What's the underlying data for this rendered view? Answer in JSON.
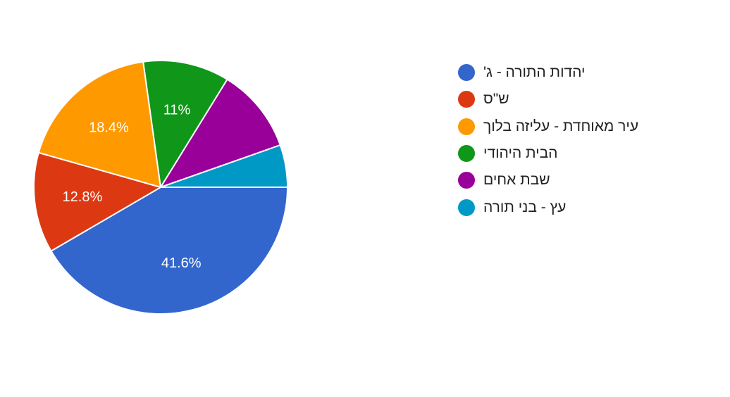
{
  "chart_data": {
    "type": "pie",
    "title": "",
    "legend_position": "right",
    "slices": [
      {
        "label": "יהדות התורה - ג'",
        "value": 41.6,
        "value_label": "41.6%",
        "color": "#3366cc"
      },
      {
        "label": "ש\"ס",
        "value": 12.8,
        "value_label": "12.8%",
        "color": "#dc3912"
      },
      {
        "label": "עיר מאוחדת - עליזה בלוך",
        "value": 18.4,
        "value_label": "18.4%",
        "color": "#ff9900"
      },
      {
        "label": "הבית היהודי",
        "value": 11,
        "value_label": "11%",
        "color": "#109618"
      },
      {
        "label": "שבת אחים",
        "value": 10.8,
        "value_label": "",
        "color": "#990099"
      },
      {
        "label": "עץ - בני תורה",
        "value": 5.4,
        "value_label": "",
        "color": "#0099c6"
      }
    ]
  }
}
